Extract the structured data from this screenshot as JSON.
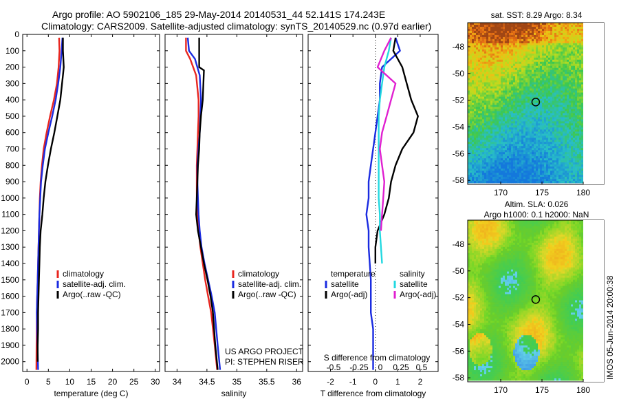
{
  "header": {
    "line1": "Argo profile: AO 5902106_185 29-May-2014 20140531_44 52.141S 174.243E",
    "line2": "Climatology: CARS2009. Satellite-adjusted climatology: synTS_20140529.nc (0.97d earlier)"
  },
  "colors": {
    "climatology": "#e8261f",
    "satellite": "#1a2be0",
    "argo": "#000000",
    "sat_salinity": "#22d8e0",
    "argo_adj_salinity": "#e020d0"
  },
  "chart_data": [
    {
      "type": "line",
      "xlabel": "temperature (deg C)",
      "xlim": [
        -1,
        31
      ],
      "ylim": [
        2060,
        0
      ],
      "xticks": [
        0,
        5,
        10,
        15,
        20,
        25,
        30
      ],
      "yticks": [
        0,
        100,
        200,
        300,
        400,
        500,
        600,
        700,
        800,
        900,
        1000,
        1100,
        1200,
        1300,
        1400,
        1500,
        1600,
        1700,
        1800,
        1900,
        2000
      ],
      "legend": [
        "climatology",
        "satellite-adj. clim.",
        "Argo(..raw -QC)"
      ],
      "series": [
        {
          "name": "climatology",
          "x": [
            7.5,
            7.6,
            7.4,
            7.0,
            6.3,
            5.4,
            4.6,
            3.9,
            3.5,
            3.2,
            3.0,
            2.9,
            2.8,
            2.7,
            2.6,
            2.5,
            2.4,
            2.3,
            2.2
          ],
          "y": [
            20,
            100,
            200,
            300,
            400,
            500,
            600,
            700,
            800,
            900,
            1000,
            1100,
            1200,
            1300,
            1400,
            1500,
            1600,
            1700,
            2050
          ]
        },
        {
          "name": "satellite-adj. clim.",
          "x": [
            8.3,
            8.1,
            7.8,
            7.3,
            6.7,
            5.9,
            5.0,
            4.2,
            3.7,
            3.3,
            3.1,
            2.9,
            2.8,
            2.7,
            2.6,
            2.5,
            2.4,
            2.3,
            2.6
          ],
          "y": [
            20,
            100,
            200,
            300,
            400,
            500,
            600,
            700,
            800,
            900,
            1000,
            1100,
            1200,
            1300,
            1400,
            1500,
            1600,
            1700,
            2050
          ]
        },
        {
          "name": "Argo(..raw -QC)",
          "x": [
            8.4,
            8.4,
            8.6,
            8.4,
            7.8,
            7.1,
            6.4,
            5.6,
            4.9,
            4.3,
            3.9,
            3.6,
            3.2,
            3.0,
            2.9,
            2.8,
            2.7,
            2.6,
            2.6,
            2.5,
            2.5
          ],
          "y": [
            20,
            100,
            200,
            250,
            400,
            500,
            600,
            700,
            800,
            900,
            1000,
            1100,
            1200,
            1300,
            1400,
            1500,
            1600,
            1700,
            1800,
            1900,
            2000
          ]
        }
      ]
    },
    {
      "type": "line",
      "xlabel": "salinity",
      "xlim": [
        33.8,
        36.1
      ],
      "ylim": [
        2060,
        0
      ],
      "xticks": [
        34,
        34.5,
        35,
        35.5,
        36
      ],
      "legend": [
        "climatology",
        "satellite-adj. clim.",
        "Argo(..raw -QC)"
      ],
      "annotation": [
        "US ARGO PROJECT",
        "PI: STEPHEN RISER"
      ],
      "series": [
        {
          "name": "climatology",
          "x": [
            34.15,
            34.15,
            34.22,
            34.32,
            34.36,
            34.36,
            34.35,
            34.34,
            34.33,
            34.33,
            34.33,
            34.34,
            34.36,
            34.39,
            34.43,
            34.47,
            34.52,
            34.57,
            34.63,
            34.67
          ],
          "y": [
            20,
            100,
            150,
            250,
            400,
            500,
            600,
            700,
            800,
            900,
            1000,
            1100,
            1200,
            1300,
            1400,
            1500,
            1600,
            1700,
            1900,
            2050
          ]
        },
        {
          "name": "satellite-adj. clim.",
          "x": [
            34.18,
            34.2,
            34.3,
            34.38,
            34.4,
            34.39,
            34.38,
            34.36,
            34.34,
            34.34,
            34.35,
            34.36,
            34.38,
            34.41,
            34.46,
            34.52,
            34.58,
            34.63,
            34.68,
            34.72
          ],
          "y": [
            20,
            100,
            150,
            250,
            400,
            500,
            600,
            700,
            800,
            900,
            1000,
            1100,
            1200,
            1300,
            1400,
            1500,
            1600,
            1700,
            1900,
            2050
          ]
        },
        {
          "name": "Argo(..raw -QC)",
          "x": [
            34.37,
            34.37,
            34.37,
            34.45,
            34.43,
            34.4,
            34.38,
            34.37,
            34.35,
            34.34,
            34.33,
            34.32,
            34.35,
            34.4,
            34.45,
            34.51,
            34.56,
            34.6,
            34.64,
            34.68
          ],
          "y": [
            20,
            100,
            200,
            220,
            400,
            500,
            600,
            700,
            800,
            900,
            1000,
            1100,
            1200,
            1300,
            1400,
            1500,
            1600,
            1700,
            1900,
            2050
          ]
        }
      ]
    },
    {
      "type": "line",
      "xlabel": "T difference from climatology",
      "xlabel2": "S difference from climatology",
      "xlim": [
        -3,
        2.8
      ],
      "ylim": [
        2060,
        0
      ],
      "xticks": [
        -2,
        -1,
        0,
        1,
        2
      ],
      "xticks2": [
        "-0.5",
        "-0.25",
        "0",
        "0.25",
        "0.5"
      ],
      "legend_temperature": {
        "title": "temperature",
        "items": [
          "satellite",
          "Argo(-adj)"
        ]
      },
      "legend_salinity": {
        "title": "salinity",
        "items": [
          "satellite",
          "Argo(-adj)"
        ]
      },
      "series": [
        {
          "name": "T satellite",
          "x": [
            0.9,
            1.1,
            0.3,
            0.2,
            0.2,
            0.1,
            0.0,
            -0.1,
            -0.2,
            -0.3,
            -0.3,
            -0.4,
            -0.3,
            -0.3,
            -0.2,
            -0.2,
            -0.1,
            -0.1,
            -0.1
          ],
          "y": [
            20,
            100,
            200,
            300,
            400,
            500,
            600,
            700,
            800,
            900,
            1000,
            1100,
            1200,
            1300,
            1500,
            1700,
            1800,
            1900,
            2050
          ]
        },
        {
          "name": "T Argo(-adj)",
          "x": [
            0.9,
            0.8,
            1.2,
            1.4,
            1.6,
            1.9,
            1.7,
            1.2,
            0.9,
            0.7,
            0.6,
            0.4,
            0.1,
            0.0,
            0.0
          ],
          "y": [
            20,
            100,
            200,
            300,
            400,
            500,
            600,
            700,
            800,
            900,
            1000,
            1100,
            1200,
            1300,
            1400
          ]
        },
        {
          "name": "S satellite",
          "x": [
            0.7,
            0.6,
            0.4,
            0.3,
            0.2,
            0.15,
            0.15,
            0.15,
            0.15,
            0.15,
            0.15,
            0.2,
            0.2,
            0.25,
            0.3
          ],
          "y": [
            20,
            100,
            200,
            300,
            400,
            500,
            600,
            700,
            800,
            900,
            1000,
            1100,
            1200,
            1300,
            1400
          ]
        },
        {
          "name": "S Argo(-adj)",
          "x": [
            0.7,
            0.4,
            0.1,
            0.9,
            0.7,
            0.5,
            0.3,
            0.2,
            0.3,
            0.4,
            0.35,
            0.3,
            0.25
          ],
          "y": [
            20,
            100,
            200,
            300,
            400,
            500,
            600,
            700,
            800,
            900,
            1000,
            1100,
            1200
          ]
        }
      ]
    },
    {
      "type": "heatmap",
      "title": "sat. SST: 8.29 Argo: 8.34",
      "xticks": [
        170,
        175,
        180
      ],
      "yticks": [
        -48,
        -50,
        -52,
        -54,
        -56,
        -58
      ],
      "marker": {
        "x": 174.243,
        "y": -52.141
      }
    },
    {
      "type": "heatmap",
      "title_line1": "Altim. SLA: 0.026",
      "title_line2": "Argo h1000: 0.1 h2000: NaN",
      "xticks": [
        170,
        175,
        180
      ],
      "yticks": [
        -48,
        -50,
        -52,
        -54,
        -56,
        -58
      ],
      "marker": {
        "x": 174.243,
        "y": -52.141
      }
    }
  ],
  "side_label": "IMOS 05-Jun-2014 20:00:38"
}
